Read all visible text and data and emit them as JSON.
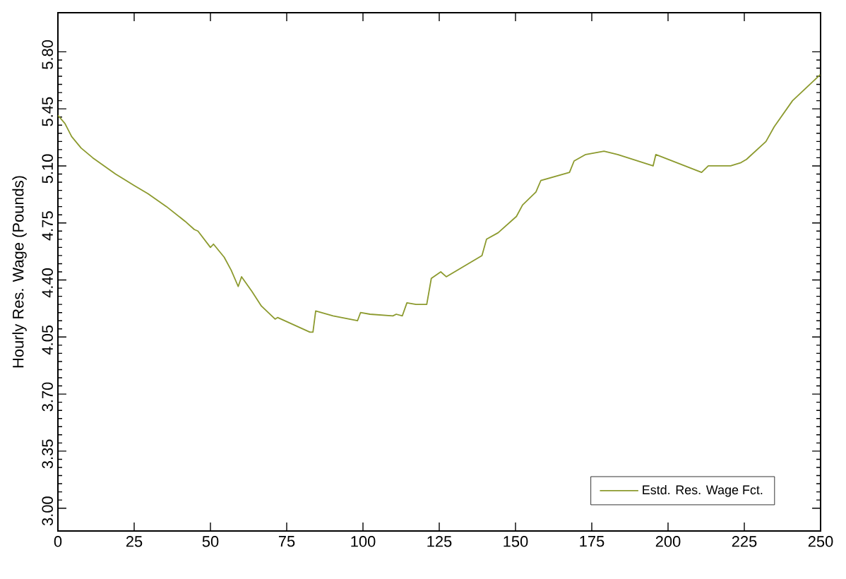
{
  "chart_data": {
    "type": "line",
    "ylabel": "Hourly Res. Wage (Pounds)",
    "x": [
      0,
      2.3,
      4.5,
      7.6,
      11.4,
      18.9,
      25,
      29.5,
      35.6,
      41.7,
      44.7,
      45.9,
      50,
      51,
      54.5,
      56.8,
      59.1,
      60.2,
      63.6,
      66.7,
      71.2,
      72,
      82.6,
      83.6,
      84.5,
      90.2,
      98.2,
      99.2,
      102.3,
      109.8,
      110.9,
      112.9,
      114.4,
      117.4,
      120.9,
      122.4,
      125.5,
      127.3,
      139.0,
      140.5,
      144.3,
      150.3,
      152.3,
      156.7,
      158.3,
      167.7,
      169.2,
      173.0,
      179.0,
      183.5,
      195.1,
      196.0,
      211.0,
      213.2,
      220.5,
      223.9,
      225.7,
      232.1,
      234.8,
      240.8,
      249.9
    ],
    "series": [
      {
        "name": "Estd. Res. Wage Fct.",
        "color": "#8c9a2e",
        "values": [
          5.41,
          5.36,
          5.28,
          5.21,
          5.15,
          5.05,
          4.98,
          4.93,
          4.85,
          4.76,
          4.71,
          4.7,
          4.6,
          4.62,
          4.54,
          4.46,
          4.36,
          4.42,
          4.33,
          4.24,
          4.16,
          4.17,
          4.08,
          4.08,
          4.21,
          4.18,
          4.15,
          4.2,
          4.19,
          4.18,
          4.19,
          4.18,
          4.26,
          4.25,
          4.25,
          4.41,
          4.45,
          4.42,
          4.55,
          4.65,
          4.69,
          4.79,
          4.86,
          4.94,
          5.01,
          5.06,
          5.13,
          5.17,
          5.19,
          5.17,
          5.1,
          5.17,
          5.06,
          5.1,
          5.1,
          5.12,
          5.14,
          5.25,
          5.34,
          5.5,
          5.66
        ]
      }
    ],
    "xlim": [
      0,
      250
    ],
    "xticks": [
      0,
      25,
      50,
      75,
      100,
      125,
      150,
      175,
      200,
      225,
      250
    ],
    "ylim": [
      2.86,
      6.04
    ],
    "yticks": [
      {
        "value": 3.0,
        "label": "3.00"
      },
      {
        "value": 3.35,
        "label": "3.35"
      },
      {
        "value": 3.7,
        "label": "3.70"
      },
      {
        "value": 4.05,
        "label": "4.05"
      },
      {
        "value": 4.4,
        "label": "4.40"
      },
      {
        "value": 4.75,
        "label": "4.75"
      },
      {
        "value": 5.1,
        "label": "5.10"
      },
      {
        "value": 5.45,
        "label": "5.45"
      },
      {
        "value": 5.8,
        "label": "5.80"
      }
    ],
    "legend": "bottom right",
    "grid": false,
    "marker": "none",
    "line_style": "solid"
  }
}
